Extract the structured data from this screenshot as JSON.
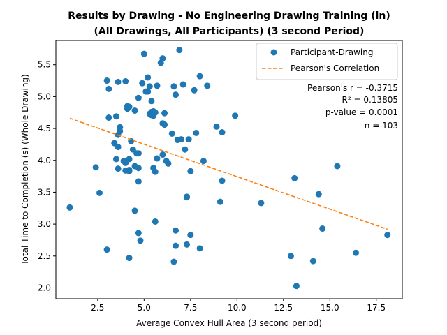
{
  "chart_data": {
    "type": "scatter",
    "title": [
      "Results by Drawing - No Engineering Drawing Training (ln)",
      "(All Drawings, All Participants) (3 second Period)"
    ],
    "xlabel": "Average Convex Hull Area (3 second period)",
    "ylabel": "Total Time to Completion (s) (Whole Drawing)",
    "xlim": [
      0.25,
      18.9
    ],
    "ylim": [
      1.83,
      5.88
    ],
    "xticks": [
      2.5,
      5.0,
      7.5,
      10.0,
      12.5,
      15.0,
      17.5
    ],
    "xtick_labels": [
      "2.5",
      "5.0",
      "7.5",
      "10.0",
      "12.5",
      "15.0",
      "17.5"
    ],
    "yticks": [
      2.0,
      2.5,
      3.0,
      3.5,
      4.0,
      4.5,
      5.0,
      5.5
    ],
    "ytick_labels": [
      "2.0",
      "2.5",
      "3.0",
      "3.5",
      "4.0",
      "4.5",
      "5.0",
      "5.5"
    ],
    "grid": false,
    "legend_position": "top-right",
    "series": [
      {
        "name": "Participant-Drawing",
        "kind": "scatter",
        "color": "#1f77b4",
        "points": [
          [
            1.0,
            3.26
          ],
          [
            2.4,
            3.89
          ],
          [
            2.6,
            3.49
          ],
          [
            3.0,
            5.25
          ],
          [
            3.1,
            5.12
          ],
          [
            3.1,
            4.67
          ],
          [
            3.0,
            2.6
          ],
          [
            3.4,
            4.27
          ],
          [
            3.5,
            4.69
          ],
          [
            3.6,
            5.23
          ],
          [
            3.7,
            4.52
          ],
          [
            3.6,
            4.4
          ],
          [
            3.7,
            4.46
          ],
          [
            3.6,
            4.21
          ],
          [
            3.5,
            4.02
          ],
          [
            3.6,
            3.87
          ],
          [
            3.9,
            3.99
          ],
          [
            4.0,
            5.24
          ],
          [
            4.1,
            4.85
          ],
          [
            4.1,
            4.81
          ],
          [
            4.0,
            3.96
          ],
          [
            4.2,
            3.85
          ],
          [
            4.2,
            4.02
          ],
          [
            4.2,
            3.83
          ],
          [
            4.3,
            4.3
          ],
          [
            4.4,
            4.17
          ],
          [
            4.2,
            2.47
          ],
          [
            4.5,
            4.78
          ],
          [
            4.5,
            3.91
          ],
          [
            4.6,
            4.11
          ],
          [
            4.7,
            4.98
          ],
          [
            4.7,
            4.11
          ],
          [
            4.7,
            3.88
          ],
          [
            4.7,
            3.67
          ],
          [
            4.5,
            3.21
          ],
          [
            4.7,
            2.86
          ],
          [
            4.8,
            2.74
          ],
          [
            4.9,
            5.21
          ],
          [
            5.0,
            5.67
          ],
          [
            5.1,
            5.08
          ],
          [
            5.2,
            5.3
          ],
          [
            5.3,
            5.16
          ],
          [
            5.2,
            5.08
          ],
          [
            5.3,
            4.73
          ],
          [
            5.4,
            4.76
          ],
          [
            5.4,
            4.71
          ],
          [
            5.4,
            4.93
          ],
          [
            5.5,
            4.77
          ],
          [
            5.5,
            4.7
          ],
          [
            5.5,
            3.88
          ],
          [
            5.6,
            3.82
          ],
          [
            5.6,
            3.04
          ],
          [
            5.7,
            5.17
          ],
          [
            5.7,
            4.03
          ],
          [
            5.9,
            5.53
          ],
          [
            6.0,
            5.6
          ],
          [
            6.0,
            4.58
          ],
          [
            6.1,
            4.74
          ],
          [
            6.1,
            4.56
          ],
          [
            6.0,
            4.09
          ],
          [
            6.2,
            3.99
          ],
          [
            6.3,
            3.95
          ],
          [
            6.5,
            4.42
          ],
          [
            6.6,
            2.41
          ],
          [
            6.6,
            5.16
          ],
          [
            6.7,
            5.03
          ],
          [
            6.8,
            4.32
          ],
          [
            6.9,
            5.73
          ],
          [
            7.0,
            4.33
          ],
          [
            7.1,
            5.19
          ],
          [
            7.2,
            4.17
          ],
          [
            7.3,
            3.43
          ],
          [
            7.3,
            3.42
          ],
          [
            7.3,
            2.68
          ],
          [
            7.4,
            4.33
          ],
          [
            7.5,
            3.83
          ],
          [
            7.5,
            2.83
          ],
          [
            7.7,
            5.1
          ],
          [
            7.8,
            4.43
          ],
          [
            8.0,
            5.32
          ],
          [
            8.2,
            3.99
          ],
          [
            8.4,
            5.17
          ],
          [
            8.0,
            2.62
          ],
          [
            8.9,
            4.53
          ],
          [
            9.2,
            4.44
          ],
          [
            9.2,
            3.68
          ],
          [
            9.1,
            3.35
          ],
          [
            9.9,
            4.7
          ],
          [
            11.3,
            3.33
          ],
          [
            12.9,
            2.5
          ],
          [
            13.1,
            3.72
          ],
          [
            13.2,
            2.03
          ],
          [
            14.1,
            2.42
          ],
          [
            14.4,
            3.47
          ],
          [
            14.6,
            2.93
          ],
          [
            15.4,
            3.91
          ],
          [
            16.4,
            2.55
          ],
          [
            18.1,
            2.83
          ],
          [
            6.7,
            2.66
          ],
          [
            6.7,
            2.9
          ],
          [
            4.2,
            4.84
          ],
          [
            5.6,
            4.75
          ],
          [
            4.0,
            3.84
          ]
        ]
      },
      {
        "name": "Pearson's Correlation",
        "kind": "line",
        "style": "dashed",
        "color": "#ff7f0e",
        "points": [
          [
            1.0,
            4.66
          ],
          [
            18.1,
            2.92
          ]
        ]
      }
    ],
    "annotations": [
      "Pearson's r = -0.3715",
      "R² = 0.13805",
      "p-value = 0.0001",
      "n = 103"
    ]
  }
}
